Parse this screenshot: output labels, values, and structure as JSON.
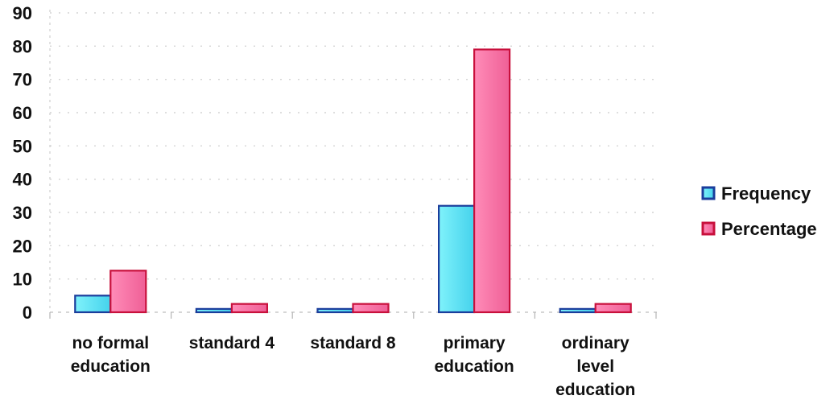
{
  "chart_data": {
    "type": "bar",
    "categories": [
      [
        "no formal",
        "education"
      ],
      [
        "standard 4"
      ],
      [
        "standard 8"
      ],
      [
        "primary",
        "education"
      ],
      [
        "ordinary",
        "level",
        "education"
      ]
    ],
    "series": [
      {
        "name": "Frequency",
        "values": [
          5,
          1,
          1,
          32,
          1
        ],
        "color": "#5ee3f0",
        "border": "#1a3d9c"
      },
      {
        "name": "Percentage",
        "values": [
          12.5,
          2.5,
          2.5,
          79,
          2.5
        ],
        "color": "#f46fa2",
        "border": "#c8103c"
      }
    ],
    "ylim": [
      0,
      90
    ],
    "yticks": [
      0,
      10,
      20,
      30,
      40,
      50,
      60,
      70,
      80,
      90
    ],
    "ytick_labels": [
      "0",
      "10",
      "20",
      "30",
      "40",
      "50",
      "60",
      "70",
      "80",
      "90"
    ],
    "grid": true,
    "legend_position": "right"
  }
}
